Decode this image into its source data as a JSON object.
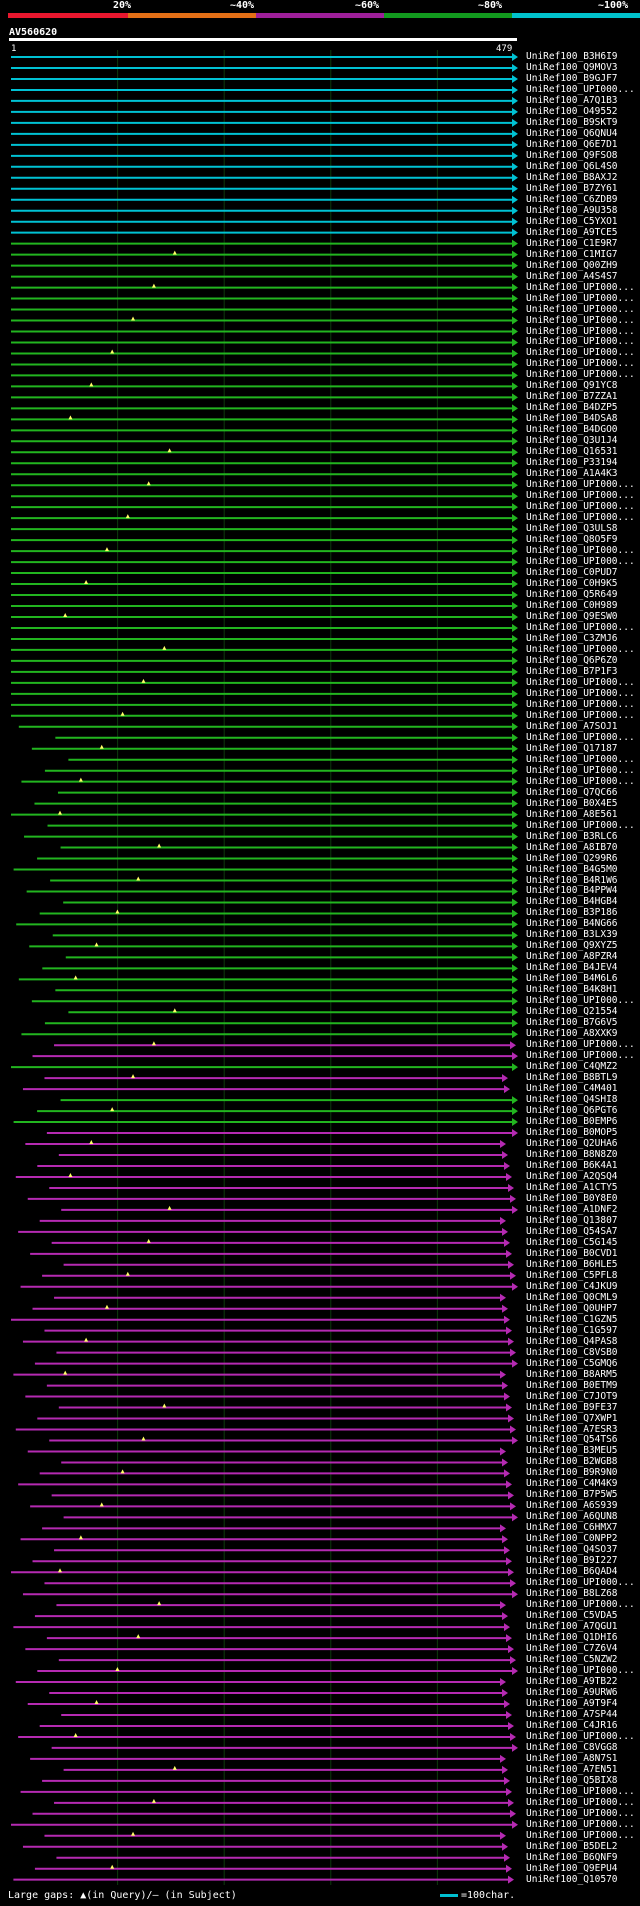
{
  "query_id": "AV560620",
  "axis": {
    "start": "1",
    "end": "479"
  },
  "scale": {
    "labels": [
      "20%",
      "~40%",
      "~60%",
      "~80%",
      "~100%"
    ],
    "colors": [
      "#e8172e",
      "#e36f16",
      "#9e1f9a",
      "#12991e",
      "#00c2cc"
    ]
  },
  "colors": {
    "cyan": "#00c2d4",
    "green": "#22b51f",
    "magenta": "#b52ab2",
    "dark": "#111",
    "gridline": "#0d3a0d"
  },
  "footer": {
    "text": "Large gaps: ▲(in Query)/– (in Subject)",
    "legend": "=100char."
  },
  "hits": [
    {
      "name": "UniRef100_B3H6I9",
      "c": "cyan"
    },
    {
      "name": "UniRef100_Q9MOV3",
      "c": "cyan"
    },
    {
      "name": "UniRef100_B9GJF7",
      "c": "cyan"
    },
    {
      "name": "UniRef100_UPI000...",
      "c": "cyan"
    },
    {
      "name": "UniRef100_A7Q1B3",
      "c": "cyan"
    },
    {
      "name": "UniRef100_O49552",
      "c": "cyan"
    },
    {
      "name": "UniRef100_B9SKT9",
      "c": "cyan"
    },
    {
      "name": "UniRef100_Q6QNU4",
      "c": "cyan"
    },
    {
      "name": "UniRef100_Q6E7D1",
      "c": "cyan"
    },
    {
      "name": "UniRef100_Q9FSO8",
      "c": "cyan"
    },
    {
      "name": "UniRef100_Q6L4S0",
      "c": "cyan"
    },
    {
      "name": "UniRef100_B8AXJ2",
      "c": "cyan"
    },
    {
      "name": "UniRef100_B7ZY61",
      "c": "cyan"
    },
    {
      "name": "UniRef100_C6ZDB9",
      "c": "cyan"
    },
    {
      "name": "UniRef100_A9U358",
      "c": "cyan"
    },
    {
      "name": "UniRef100_C5YXO1",
      "c": "cyan"
    },
    {
      "name": "UniRef100_A9TCE5",
      "c": "cyan"
    },
    {
      "name": "UniRef100_C1E9R7",
      "c": "green"
    },
    {
      "name": "UniRef100_C1MIG7",
      "c": "green"
    },
    {
      "name": "UniRef100_Q00ZH9",
      "c": "green"
    },
    {
      "name": "UniRef100_A4S4S7",
      "c": "green"
    },
    {
      "name": "UniRef100_UPI000...",
      "c": "green"
    },
    {
      "name": "UniRef100_UPI000...",
      "c": "green"
    },
    {
      "name": "UniRef100_UPI000...",
      "c": "green"
    },
    {
      "name": "UniRef100_UPI000...",
      "c": "green"
    },
    {
      "name": "UniRef100_UPI000...",
      "c": "green"
    },
    {
      "name": "UniRef100_UPI000...",
      "c": "green"
    },
    {
      "name": "UniRef100_UPI000...",
      "c": "green"
    },
    {
      "name": "UniRef100_UPI000...",
      "c": "green"
    },
    {
      "name": "UniRef100_UPI000...",
      "c": "green"
    },
    {
      "name": "UniRef100_Q91YC8",
      "c": "green"
    },
    {
      "name": "UniRef100_B7ZZA1",
      "c": "green"
    },
    {
      "name": "UniRef100_B4DZP5",
      "c": "green"
    },
    {
      "name": "UniRef100_B4DSA8",
      "c": "green"
    },
    {
      "name": "UniRef100_B4DGO0",
      "c": "green"
    },
    {
      "name": "UniRef100_Q3U1J4",
      "c": "green"
    },
    {
      "name": "UniRef100_Q16531",
      "c": "green"
    },
    {
      "name": "UniRef100_P33194",
      "c": "green"
    },
    {
      "name": "UniRef100_A1A4K3",
      "c": "green"
    },
    {
      "name": "UniRef100_UPI000...",
      "c": "green"
    },
    {
      "name": "UniRef100_UPI000...",
      "c": "green"
    },
    {
      "name": "UniRef100_UPI000...",
      "c": "green"
    },
    {
      "name": "UniRef100_UPI000...",
      "c": "green"
    },
    {
      "name": "UniRef100_Q3ULS8",
      "c": "green"
    },
    {
      "name": "UniRef100_Q8O5F9",
      "c": "green"
    },
    {
      "name": "UniRef100_UPI000...",
      "c": "green"
    },
    {
      "name": "UniRef100_UPI000...",
      "c": "green"
    },
    {
      "name": "UniRef100_C0PUD7",
      "c": "green"
    },
    {
      "name": "UniRef100_C0H9K5",
      "c": "green"
    },
    {
      "name": "UniRef100_Q5R649",
      "c": "green"
    },
    {
      "name": "UniRef100_C0H989",
      "c": "green"
    },
    {
      "name": "UniRef100_Q9ESW0",
      "c": "green"
    },
    {
      "name": "UniRef100_UPI000...",
      "c": "green"
    },
    {
      "name": "UniRef100_C3ZMJ6",
      "c": "green"
    },
    {
      "name": "UniRef100_UPI000...",
      "c": "green"
    },
    {
      "name": "UniRef100_Q6P6Z0",
      "c": "green"
    },
    {
      "name": "UniRef100_B7P1F3",
      "c": "green"
    },
    {
      "name": "UniRef100_UPI000...",
      "c": "green"
    },
    {
      "name": "UniRef100_UPI000...",
      "c": "green"
    },
    {
      "name": "UniRef100_UPI000...",
      "c": "green"
    },
    {
      "name": "UniRef100_UPI000...",
      "c": "green"
    },
    {
      "name": "UniRef100_A7SOJ1",
      "c": "green"
    },
    {
      "name": "UniRef100_UPI000...",
      "c": "green"
    },
    {
      "name": "UniRef100_Q17187",
      "c": "green"
    },
    {
      "name": "UniRef100_UPI000...",
      "c": "green"
    },
    {
      "name": "UniRef100_UPI000...",
      "c": "green"
    },
    {
      "name": "UniRef100_UPI000...",
      "c": "green"
    },
    {
      "name": "UniRef100_Q7QC66",
      "c": "green"
    },
    {
      "name": "UniRef100_B0X4E5",
      "c": "green"
    },
    {
      "name": "UniRef100_A8E561",
      "c": "green"
    },
    {
      "name": "UniRef100_UPI000...",
      "c": "green"
    },
    {
      "name": "UniRef100_B3RLC6",
      "c": "green"
    },
    {
      "name": "UniRef100_A8IB70",
      "c": "green"
    },
    {
      "name": "UniRef100_Q299R6",
      "c": "green"
    },
    {
      "name": "UniRef100_B4G5M0",
      "c": "green"
    },
    {
      "name": "UniRef100_B4R1W6",
      "c": "green"
    },
    {
      "name": "UniRef100_B4PPW4",
      "c": "green"
    },
    {
      "name": "UniRef100_B4HGB4",
      "c": "green"
    },
    {
      "name": "UniRef100_B3P186",
      "c": "green"
    },
    {
      "name": "UniRef100_B4NG66",
      "c": "green"
    },
    {
      "name": "UniRef100_B3LX39",
      "c": "green"
    },
    {
      "name": "UniRef100_Q9XYZ5",
      "c": "green"
    },
    {
      "name": "UniRef100_A8PZR4",
      "c": "green"
    },
    {
      "name": "UniRef100_B4JEV4",
      "c": "green"
    },
    {
      "name": "UniRef100_B4M6L6",
      "c": "green"
    },
    {
      "name": "UniRef100_B4K8H1",
      "c": "green"
    },
    {
      "name": "UniRef100_UPI000...",
      "c": "green"
    },
    {
      "name": "UniRef100_Q21554",
      "c": "green"
    },
    {
      "name": "UniRef100_B7G6V5",
      "c": "green"
    },
    {
      "name": "UniRef100_A8XXK9",
      "c": "green"
    },
    {
      "name": "UniRef100_UPI000...",
      "c": "magenta"
    },
    {
      "name": "UniRef100_UPI000...",
      "c": "magenta"
    },
    {
      "name": "UniRef100_C4QMZ2",
      "c": "green"
    },
    {
      "name": "UniRef100_B8BTL9",
      "c": "magenta"
    },
    {
      "name": "UniRef100_C4M401",
      "c": "magenta"
    },
    {
      "name": "UniRef100_Q4SHI8",
      "c": "green"
    },
    {
      "name": "UniRef100_Q6PGT6",
      "c": "green"
    },
    {
      "name": "UniRef100_B0EMP6",
      "c": "green"
    },
    {
      "name": "UniRef100_B0MOP5",
      "c": "magenta"
    },
    {
      "name": "UniRef100_Q2UHA6",
      "c": "magenta"
    },
    {
      "name": "UniRef100_B8N8Z0",
      "c": "magenta"
    },
    {
      "name": "UniRef100_B6K4A1",
      "c": "magenta"
    },
    {
      "name": "UniRef100_A2QSQ4",
      "c": "magenta"
    },
    {
      "name": "UniRef100_A1CTY5",
      "c": "magenta"
    },
    {
      "name": "UniRef100_B0Y8E0",
      "c": "magenta"
    },
    {
      "name": "UniRef100_A1DNF2",
      "c": "magenta"
    },
    {
      "name": "UniRef100_Q13807",
      "c": "magenta"
    },
    {
      "name": "UniRef100_Q54SA7",
      "c": "magenta"
    },
    {
      "name": "UniRef100_C5G145",
      "c": "magenta"
    },
    {
      "name": "UniRef100_B0CVD1",
      "c": "magenta"
    },
    {
      "name": "UniRef100_B6HLE5",
      "c": "magenta"
    },
    {
      "name": "UniRef100_C5PFL8",
      "c": "magenta"
    },
    {
      "name": "UniRef100_C4JKU9",
      "c": "magenta"
    },
    {
      "name": "UniRef100_Q0CML9",
      "c": "magenta"
    },
    {
      "name": "UniRef100_Q0UHP7",
      "c": "magenta"
    },
    {
      "name": "UniRef100_C1GZN5",
      "c": "magenta"
    },
    {
      "name": "UniRef100_C1G597",
      "c": "magenta"
    },
    {
      "name": "UniRef100_Q4PAS8",
      "c": "magenta"
    },
    {
      "name": "UniRef100_C8VSB0",
      "c": "magenta"
    },
    {
      "name": "UniRef100_C5GMQ6",
      "c": "magenta"
    },
    {
      "name": "UniRef100_B8ARM5",
      "c": "magenta"
    },
    {
      "name": "UniRef100_B0ETM9",
      "c": "magenta"
    },
    {
      "name": "UniRef100_C7JOT9",
      "c": "magenta"
    },
    {
      "name": "UniRef100_B9FE37",
      "c": "magenta"
    },
    {
      "name": "UniRef100_Q7XWP1",
      "c": "magenta"
    },
    {
      "name": "UniRef100_A7ESR3",
      "c": "magenta"
    },
    {
      "name": "UniRef100_Q54TS6",
      "c": "magenta"
    },
    {
      "name": "UniRef100_B3MEU5",
      "c": "magenta"
    },
    {
      "name": "UniRef100_B2WGB8",
      "c": "magenta"
    },
    {
      "name": "UniRef100_B9R9N0",
      "c": "magenta"
    },
    {
      "name": "UniRef100_C4M4K9",
      "c": "magenta"
    },
    {
      "name": "UniRef100_B7P5W5",
      "c": "magenta"
    },
    {
      "name": "UniRef100_A6S939",
      "c": "magenta"
    },
    {
      "name": "UniRef100_A6QUN8",
      "c": "magenta"
    },
    {
      "name": "UniRef100_C6HMX7",
      "c": "magenta"
    },
    {
      "name": "UniRef100_C0NPP2",
      "c": "magenta"
    },
    {
      "name": "UniRef100_Q4SO37",
      "c": "magenta"
    },
    {
      "name": "UniRef100_B9I227",
      "c": "magenta"
    },
    {
      "name": "UniRef100_B6QAD4",
      "c": "magenta"
    },
    {
      "name": "UniRef100_UPI000...",
      "c": "magenta"
    },
    {
      "name": "UniRef100_B8LZ68",
      "c": "magenta"
    },
    {
      "name": "UniRef100_UPI000...",
      "c": "magenta"
    },
    {
      "name": "UniRef100_C5VDA5",
      "c": "magenta"
    },
    {
      "name": "UniRef100_A7QGU1",
      "c": "magenta"
    },
    {
      "name": "UniRef100_Q1DHI6",
      "c": "magenta"
    },
    {
      "name": "UniRef100_C7Z6V4",
      "c": "magenta"
    },
    {
      "name": "UniRef100_C5NZW2",
      "c": "magenta"
    },
    {
      "name": "UniRef100_UPI000...",
      "c": "magenta"
    },
    {
      "name": "UniRef100_A9TB22",
      "c": "magenta"
    },
    {
      "name": "UniRef100_A9URW6",
      "c": "magenta"
    },
    {
      "name": "UniRef100_A9T9F4",
      "c": "magenta"
    },
    {
      "name": "UniRef100_A7SP44",
      "c": "magenta"
    },
    {
      "name": "UniRef100_C4JR16",
      "c": "magenta"
    },
    {
      "name": "UniRef100_UPI000...",
      "c": "magenta"
    },
    {
      "name": "UniRef100_C8VGG8",
      "c": "magenta"
    },
    {
      "name": "UniRef100_A8N7S1",
      "c": "magenta"
    },
    {
      "name": "UniRef100_A7EN51",
      "c": "magenta"
    },
    {
      "name": "UniRef100_Q5BIX8",
      "c": "magenta"
    },
    {
      "name": "UniRef100_UPI000...",
      "c": "magenta"
    },
    {
      "name": "UniRef100_UPI000...",
      "c": "magenta"
    },
    {
      "name": "UniRef100_UPI000...",
      "c": "magenta"
    },
    {
      "name": "UniRef100_UPI000...",
      "c": "magenta"
    },
    {
      "name": "UniRef100_UPI000...",
      "c": "magenta"
    },
    {
      "name": "UniRef100_B5DEL2",
      "c": "magenta"
    },
    {
      "name": "UniRef100_B6QNF9",
      "c": "magenta"
    },
    {
      "name": "UniRef100_Q9EPU4",
      "c": "magenta"
    },
    {
      "name": "UniRef100_Q10570",
      "c": "magenta"
    }
  ]
}
